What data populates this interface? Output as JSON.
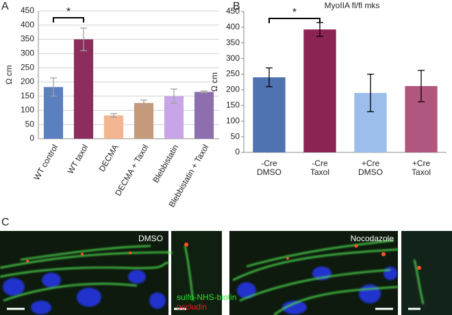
{
  "chart_data": [
    {
      "type": "bar",
      "panel": "A",
      "y_label": "Ω cm",
      "categories": [
        "WT control",
        "WT taxol",
        "DECMA",
        "DECMA + Taxol",
        "Blebbistatin",
        "Blebbistatin + Taxol"
      ],
      "values": [
        182,
        350,
        82,
        126,
        150,
        165
      ],
      "errors": [
        32,
        40,
        6,
        10,
        25,
        3
      ],
      "colors": [
        "#5b7fbf",
        "#8b2e5e",
        "#f2b58f",
        "#c49a7a",
        "#c8a5e8",
        "#8d6fb0"
      ],
      "error_color": "#a0a0a0",
      "ylim": [
        0,
        450
      ],
      "yticks": [
        0,
        50,
        100,
        150,
        200,
        250,
        300,
        350,
        400,
        450
      ],
      "grid": true,
      "significance": {
        "label": "*",
        "pair": [
          "WT control",
          "WT taxol"
        ]
      }
    },
    {
      "type": "bar",
      "panel": "B",
      "title": "MyoIIA fl/fl mks",
      "y_label": "Ω cm",
      "categories": [
        "-Cre\nDMSO",
        "-Cre\nTaxol",
        "+Cre\nDMSO",
        "+Cre\nTaxol"
      ],
      "values": [
        240,
        393,
        190,
        212
      ],
      "errors": [
        30,
        22,
        60,
        50
      ],
      "colors": [
        "#4f72b0",
        "#8b2452",
        "#9dbdeb",
        "#b0577f"
      ],
      "error_color": "#000000",
      "ylim": [
        0,
        450
      ],
      "yticks": [
        0,
        50,
        100,
        150,
        200,
        250,
        300,
        350,
        400,
        450
      ],
      "grid": false,
      "significance": {
        "label": "*",
        "pair": [
          "-Cre\nDMSO",
          "-Cre\nTaxol"
        ]
      }
    }
  ],
  "panel_c": {
    "label": "C",
    "conditions": [
      "DMSO",
      "Nocodazole"
    ],
    "stains": [
      {
        "text": "sulfo-NHS-biotin",
        "color": "#33dd33"
      },
      {
        "text": "occludin",
        "color": "#ee2222"
      }
    ]
  }
}
